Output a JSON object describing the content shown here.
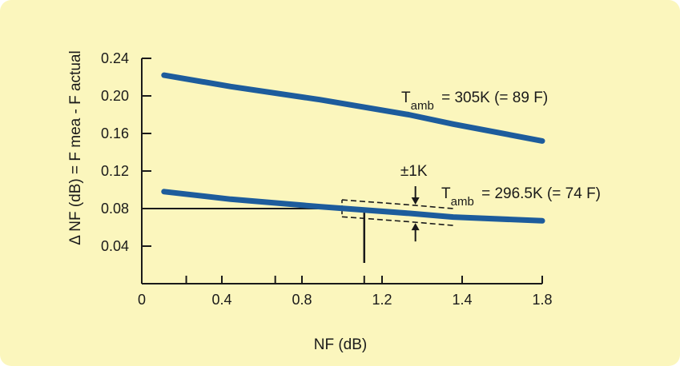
{
  "chart_data": {
    "type": "line",
    "xlabel": "NF (dB)",
    "ylabel": "Δ NF (dB) = F mea - F actual",
    "xlim": [
      0,
      1.8
    ],
    "ylim": [
      0,
      0.24
    ],
    "x_ticks": [
      "0",
      "0.4",
      "0.8",
      "1.2",
      "1.4",
      "1.8"
    ],
    "x_minor_positions": [
      0.2,
      0.6,
      1.0
    ],
    "y_ticks": [
      "0.04",
      "0.08",
      "0.12",
      "0.16",
      "0.20",
      "0.24"
    ],
    "series": [
      {
        "name": "T_amb = 305K (= 89 F)",
        "x": [
          0.1,
          0.4,
          0.8,
          1.2,
          1.4,
          1.8
        ],
        "y": [
          0.222,
          0.21,
          0.196,
          0.18,
          0.17,
          0.152
        ]
      },
      {
        "name": "T_amb = 296.5K (= 74 F)",
        "x": [
          0.1,
          0.4,
          0.8,
          1.2,
          1.4,
          1.8
        ],
        "y": [
          0.098,
          0.09,
          0.082,
          0.075,
          0.071,
          0.067
        ]
      }
    ],
    "curve_labels": [
      {
        "pre": "T",
        "sub": "amb",
        "post": " = 305K (= 89 F)"
      },
      {
        "pre": "T",
        "sub": "amb",
        "post": " = 296.5K (= 74 F)"
      }
    ],
    "annotations": {
      "tolerance_label": "±1K",
      "reference_point": {
        "x": 1.0,
        "y": 0.08
      }
    },
    "colors": {
      "series": "#1d5c9c",
      "background": "#fbf6bd",
      "axis": "#1a1a1a"
    },
    "grid": false,
    "legend": "none"
  }
}
